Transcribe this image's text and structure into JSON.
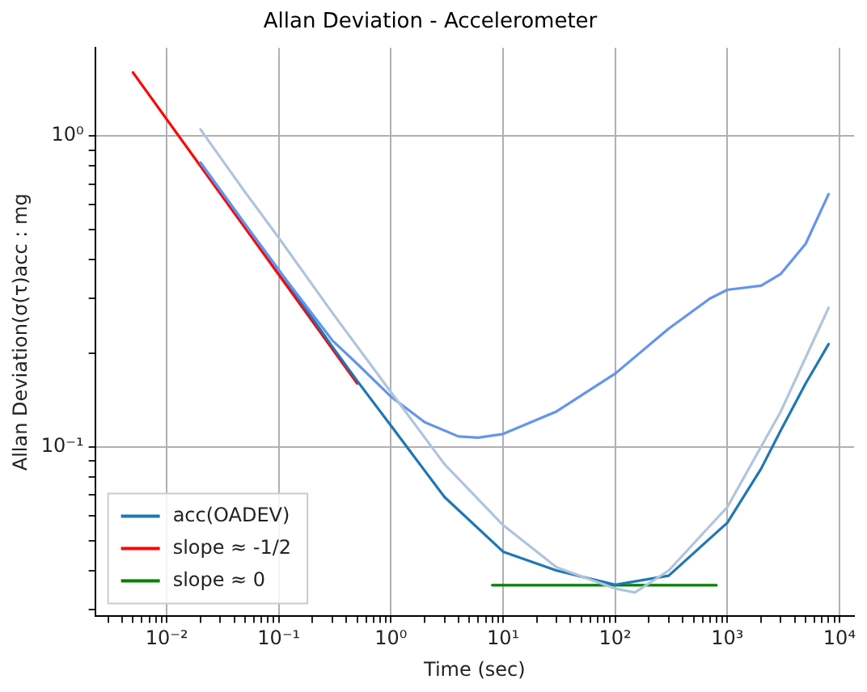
{
  "chart_data": {
    "type": "line",
    "title": "Allan Deviation - Accelerometer",
    "xlabel": "Time (sec)",
    "ylabel": "Allan Deviation(σ(τ)acc : mg",
    "log": "xy",
    "grid": true,
    "legend": "bottom left",
    "line_style": "solid",
    "marker": "none",
    "xlim": [
      0.0023,
      13500
    ],
    "ylim": [
      0.0285,
      1.92
    ],
    "xticks": [
      {
        "value": 0.003,
        "label": null
      },
      {
        "value": 0.004,
        "label": null
      },
      {
        "value": 0.005,
        "label": null
      },
      {
        "value": 0.006,
        "label": null
      },
      {
        "value": 0.007,
        "label": null
      },
      {
        "value": 0.008,
        "label": null
      },
      {
        "value": 0.009,
        "label": null
      },
      {
        "value": 0.01,
        "label": "10⁻²"
      },
      {
        "value": 0.02,
        "label": null
      },
      {
        "value": 0.03,
        "label": null
      },
      {
        "value": 0.04,
        "label": null
      },
      {
        "value": 0.05,
        "label": null
      },
      {
        "value": 0.06,
        "label": null
      },
      {
        "value": 0.07,
        "label": null
      },
      {
        "value": 0.08,
        "label": null
      },
      {
        "value": 0.09,
        "label": null
      },
      {
        "value": 0.1,
        "label": "10⁻¹"
      },
      {
        "value": 0.2,
        "label": null
      },
      {
        "value": 0.3,
        "label": null
      },
      {
        "value": 0.4,
        "label": null
      },
      {
        "value": 0.5,
        "label": null
      },
      {
        "value": 0.6,
        "label": null
      },
      {
        "value": 0.7,
        "label": null
      },
      {
        "value": 0.8,
        "label": null
      },
      {
        "value": 0.9,
        "label": null
      },
      {
        "value": 1,
        "label": "10⁰"
      },
      {
        "value": 2,
        "label": null
      },
      {
        "value": 3,
        "label": null
      },
      {
        "value": 4,
        "label": null
      },
      {
        "value": 5,
        "label": null
      },
      {
        "value": 6,
        "label": null
      },
      {
        "value": 7,
        "label": null
      },
      {
        "value": 8,
        "label": null
      },
      {
        "value": 9,
        "label": null
      },
      {
        "value": 10,
        "label": "10¹"
      },
      {
        "value": 20,
        "label": null
      },
      {
        "value": 30,
        "label": null
      },
      {
        "value": 40,
        "label": null
      },
      {
        "value": 50,
        "label": null
      },
      {
        "value": 60,
        "label": null
      },
      {
        "value": 70,
        "label": null
      },
      {
        "value": 80,
        "label": null
      },
      {
        "value": 90,
        "label": null
      },
      {
        "value": 100,
        "label": "10²"
      },
      {
        "value": 200,
        "label": null
      },
      {
        "value": 300,
        "label": null
      },
      {
        "value": 400,
        "label": null
      },
      {
        "value": 500,
        "label": null
      },
      {
        "value": 600,
        "label": null
      },
      {
        "value": 700,
        "label": null
      },
      {
        "value": 800,
        "label": null
      },
      {
        "value": 900,
        "label": null
      },
      {
        "value": 1000,
        "label": "10³"
      },
      {
        "value": 2000,
        "label": null
      },
      {
        "value": 3000,
        "label": null
      },
      {
        "value": 4000,
        "label": null
      },
      {
        "value": 5000,
        "label": null
      },
      {
        "value": 6000,
        "label": null
      },
      {
        "value": 7000,
        "label": null
      },
      {
        "value": 8000,
        "label": null
      },
      {
        "value": 9000,
        "label": null
      },
      {
        "value": 10000,
        "label": "10⁴"
      }
    ],
    "yticks": [
      {
        "value": 0.03,
        "label": null
      },
      {
        "value": 0.04,
        "label": null
      },
      {
        "value": 0.05,
        "label": null
      },
      {
        "value": 0.06,
        "label": null
      },
      {
        "value": 0.07,
        "label": null
      },
      {
        "value": 0.08,
        "label": null
      },
      {
        "value": 0.09,
        "label": null
      },
      {
        "value": 0.1,
        "label": "10⁻¹"
      },
      {
        "value": 0.2,
        "label": null
      },
      {
        "value": 0.3,
        "label": null
      },
      {
        "value": 0.4,
        "label": null
      },
      {
        "value": 0.5,
        "label": null
      },
      {
        "value": 0.6,
        "label": null
      },
      {
        "value": 0.7,
        "label": null
      },
      {
        "value": 0.8,
        "label": null
      },
      {
        "value": 0.9,
        "label": null
      },
      {
        "value": 1,
        "label": "10⁰"
      }
    ],
    "series": [
      {
        "color": "#b0c4de",
        "x": [
          0.02,
          0.05,
          0.1,
          0.3,
          1,
          3,
          10,
          30,
          100,
          150,
          300,
          1000,
          3000,
          8000
        ],
        "values": [
          1.05,
          0.66,
          0.47,
          0.27,
          0.15,
          0.088,
          0.056,
          0.041,
          0.035,
          0.034,
          0.04,
          0.064,
          0.13,
          0.28
        ]
      },
      {
        "color": "#6495ed",
        "x": [
          0.02,
          0.05,
          0.1,
          0.3,
          0.5,
          1,
          2,
          4,
          6,
          10,
          30,
          100,
          300,
          700,
          1000,
          2000,
          3000,
          5000,
          8000
        ],
        "values": [
          0.82,
          0.52,
          0.37,
          0.22,
          0.185,
          0.145,
          0.12,
          0.108,
          0.107,
          0.11,
          0.13,
          0.172,
          0.24,
          0.3,
          0.32,
          0.33,
          0.36,
          0.45,
          0.65
        ]
      },
      {
        "name": "acc(OADEV)",
        "color": "#1f77b4",
        "x": [
          0.02,
          0.05,
          0.1,
          0.3,
          0.5,
          1,
          3,
          10,
          30,
          100,
          300,
          1000,
          2000,
          3000,
          5000,
          8000
        ],
        "values": [
          0.82,
          0.52,
          0.37,
          0.21,
          0.163,
          0.117,
          0.069,
          0.046,
          0.04,
          0.036,
          0.0385,
          0.057,
          0.085,
          0.113,
          0.16,
          0.214
        ]
      },
      {
        "name": "slope ≈ -1/2",
        "color": "#ff0000",
        "x": [
          0.005,
          0.5
        ],
        "values": [
          1.6,
          0.16
        ]
      },
      {
        "name": "slope ≈ 0",
        "color": "#008000",
        "x": [
          8,
          800
        ],
        "values": [
          0.0359,
          0.0359
        ]
      }
    ]
  }
}
